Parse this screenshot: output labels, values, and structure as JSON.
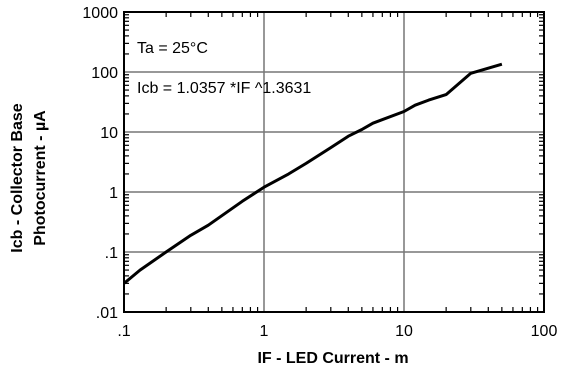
{
  "chart_data": {
    "type": "line",
    "xscale": "log",
    "yscale": "log",
    "xlim": [
      0.1,
      100
    ],
    "ylim": [
      0.01,
      1000
    ],
    "grid": true,
    "xlabel": "IF - LED Current - m",
    "ylabel_line1": "Icb - Collector Base",
    "ylabel_line2": "Photocurrent - µA",
    "x_ticks": [
      ".1",
      "1",
      "10",
      "100"
    ],
    "y_ticks": [
      "1000",
      "100",
      "10",
      "1",
      ".1",
      ".01"
    ],
    "annotations": [
      "Ta = 25°C",
      "Icb = 1.0357 *IF ^1.3631"
    ],
    "series": [
      {
        "color": "#000000",
        "x": [
          0.1,
          0.13,
          0.2,
          0.3,
          0.4,
          0.7,
          1,
          1.5,
          2,
          3,
          4,
          5,
          6,
          10,
          12,
          15,
          20,
          30,
          50
        ],
        "y": [
          0.03,
          0.05,
          0.1,
          0.19,
          0.28,
          0.7,
          1.2,
          2,
          3,
          5.5,
          8.5,
          11,
          14,
          22,
          28,
          34,
          42,
          95,
          135
        ]
      }
    ]
  }
}
